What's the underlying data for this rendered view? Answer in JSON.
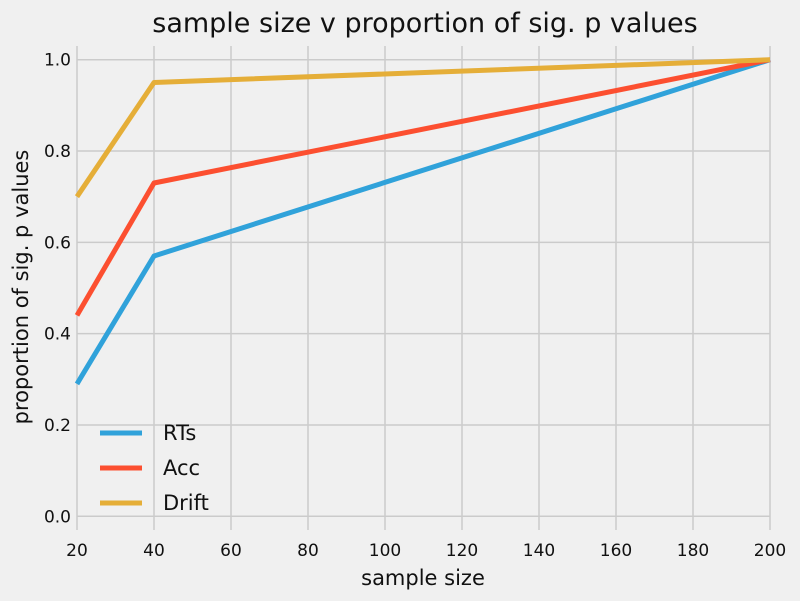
{
  "chart_data": {
    "type": "line",
    "title": "sample size v proportion of sig. p values",
    "xlabel": "sample size",
    "ylabel": "proportion of sig. p values",
    "xlim": [
      20,
      200
    ],
    "ylim": [
      -0.03,
      1.03
    ],
    "xticks": [
      20,
      40,
      60,
      80,
      100,
      120,
      140,
      160,
      180,
      200
    ],
    "yticks": [
      0.0,
      0.2,
      0.4,
      0.6,
      0.8,
      1.0
    ],
    "ytick_labels": [
      "0.0",
      "0.2",
      "0.4",
      "0.6",
      "0.8",
      "1.0"
    ],
    "grid": true,
    "legend_position": "lower-left",
    "x": [
      20,
      40,
      200
    ],
    "series": [
      {
        "name": "RTs",
        "color": "#30a2da",
        "values": [
          0.29,
          0.57,
          1.0
        ]
      },
      {
        "name": "Acc",
        "color": "#fc4f30",
        "values": [
          0.44,
          0.73,
          1.0
        ]
      },
      {
        "name": "Drift",
        "color": "#e5ae38",
        "values": [
          0.7,
          0.95,
          1.0
        ]
      }
    ]
  }
}
